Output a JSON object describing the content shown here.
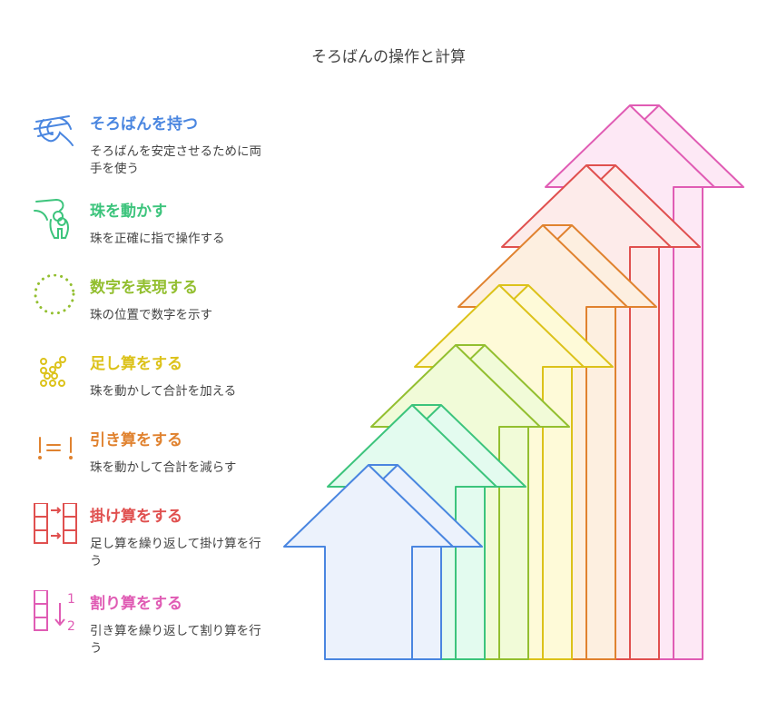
{
  "title": "そろばんの操作と計算",
  "steps": [
    {
      "heading": "そろばんを持つ",
      "description": "そろばんを安定させるために両手を使う",
      "color": "#4a86e0",
      "fill": "#ecf2fc",
      "icon": "hands-holding-icon"
    },
    {
      "heading": "珠を動かす",
      "description": "珠を正確に指で操作する",
      "color": "#3cc47c",
      "fill": "#e3fbef",
      "icon": "finger-moving-bead-icon"
    },
    {
      "heading": "数字を表現する",
      "description": "珠の位置で数字を示す",
      "color": "#93bf30",
      "fill": "#f1fbd8",
      "icon": "dotted-circle-icon"
    },
    {
      "heading": "足し算をする",
      "description": "珠を動かして合計を加える",
      "color": "#dcc21a",
      "fill": "#fefad8",
      "icon": "beads-icon"
    },
    {
      "heading": "引き算をする",
      "description": "珠を動かして合計を減らす",
      "color": "#e0822f",
      "fill": "#fdefe0",
      "icon": "not-equal-icon"
    },
    {
      "heading": "掛け算をする",
      "description": "足し算を繰り返して掛け算を行う",
      "color": "#e0504f",
      "fill": "#fdebea",
      "icon": "grid-arrows-icon"
    },
    {
      "heading": "割り算をする",
      "description": "引き算を繰り返して割り算を行う",
      "color": "#e05cb4",
      "fill": "#fde8f5",
      "icon": "divide-grid-icon"
    }
  ],
  "division_icon_labels": [
    "1",
    "2"
  ]
}
